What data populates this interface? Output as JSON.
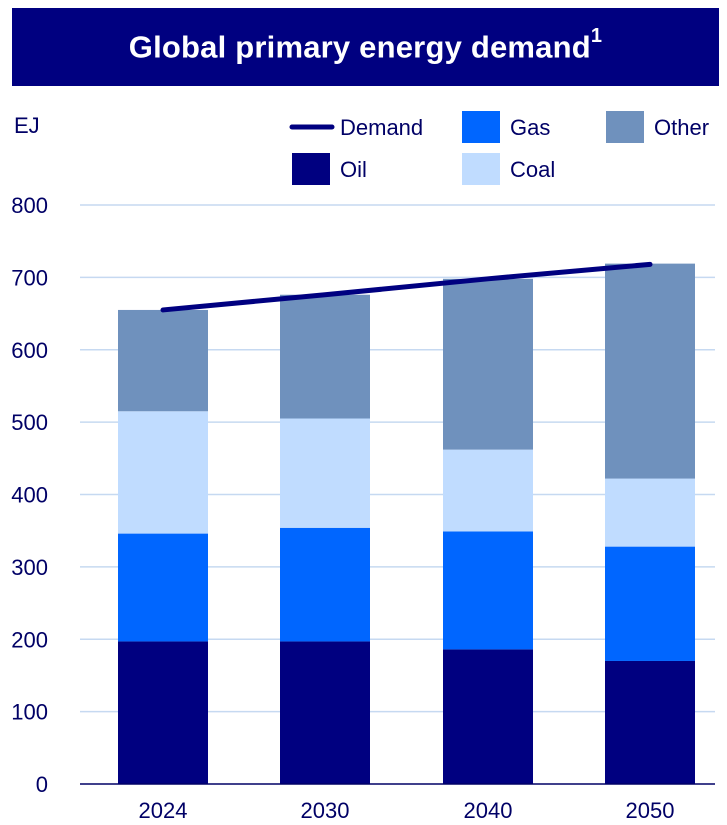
{
  "title": "Global primary energy demand",
  "title_footnote": "1",
  "chart_data": {
    "type": "bar",
    "stacked": true,
    "categories": [
      "2024",
      "2030",
      "2040",
      "2050"
    ],
    "ylabel": "EJ",
    "ylim": [
      0,
      800
    ],
    "yticks": [
      0,
      100,
      200,
      300,
      400,
      500,
      600,
      700,
      800
    ],
    "grid": true,
    "legend_position": "top-right",
    "series": [
      {
        "name": "Oil",
        "color": "#000080",
        "values": [
          197,
          197,
          186,
          170
        ]
      },
      {
        "name": "Gas",
        "color": "#0066ff",
        "values": [
          149,
          157,
          163,
          158
        ]
      },
      {
        "name": "Coal",
        "color": "#c0dcff",
        "values": [
          169,
          151,
          113,
          94
        ]
      },
      {
        "name": "Other",
        "color": "#6f91bd",
        "values": [
          140,
          171,
          236,
          297
        ]
      }
    ],
    "line_series": {
      "name": "Demand",
      "color": "#000080",
      "values": [
        655,
        676,
        698,
        718
      ]
    }
  }
}
